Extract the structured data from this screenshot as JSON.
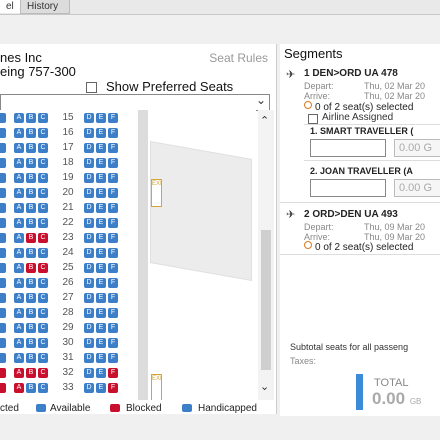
{
  "tabs": [
    "el",
    "History"
  ],
  "seatmap": {
    "airline": "nes Inc",
    "aircraft": "eing 757-300",
    "seat_rules": "Seat Rules",
    "show_preferred": "Show Preferred Seats",
    "rows": [
      {
        "num": "15",
        "blocked": []
      },
      {
        "num": "16",
        "blocked": []
      },
      {
        "num": "17",
        "blocked": []
      },
      {
        "num": "18",
        "blocked": []
      },
      {
        "num": "19",
        "blocked": []
      },
      {
        "num": "20",
        "blocked": []
      },
      {
        "num": "21",
        "blocked": []
      },
      {
        "num": "22",
        "blocked": []
      },
      {
        "num": "23",
        "blocked": [
          1,
          2
        ]
      },
      {
        "num": "24",
        "blocked": []
      },
      {
        "num": "25",
        "blocked": [
          1,
          2
        ]
      },
      {
        "num": "26",
        "blocked": []
      },
      {
        "num": "27",
        "blocked": []
      },
      {
        "num": "28",
        "blocked": []
      },
      {
        "num": "29",
        "blocked": []
      },
      {
        "num": "30",
        "blocked": []
      },
      {
        "num": "31",
        "blocked": []
      },
      {
        "num": "32",
        "blocked": [
          0,
          1,
          2,
          5
        ]
      },
      {
        "num": "33",
        "blocked": [
          0,
          5
        ]
      }
    ],
    "left_letters": [
      "A",
      "B",
      "C"
    ],
    "right_letters": [
      "D",
      "E",
      "F"
    ],
    "exit_label": "EXIT",
    "exit_rows": [
      "20",
      "33"
    ]
  },
  "legend": {
    "selected": "cted",
    "available": "Available",
    "blocked": "Blocked",
    "handicapped": "Handicapped"
  },
  "colors": {
    "available": "#3c7fc8",
    "blocked": "#c8102e",
    "total_bar": "#3a8cd8",
    "exit": "#d4a437"
  },
  "segments": {
    "title": "Segments",
    "list": [
      {
        "head": "1 DEN>ORD UA 478",
        "depart_label": "Depart:",
        "depart": "Thu, 02 Mar 20",
        "arrive_label": "Arrive:",
        "arrive": "Thu, 02 Mar 20",
        "selected_count": "0",
        "selected_text": "of 2 seat(s) selected",
        "airline_assigned": "Airline Assigned",
        "travellers": [
          {
            "name": "1. SMART TRAVELLER (",
            "amount": "0.00 G"
          },
          {
            "name": "2. JOAN TRAVELLER (A",
            "amount": "0.00 G"
          }
        ]
      },
      {
        "head": "2 ORD>DEN UA 493",
        "depart_label": "Depart:",
        "depart": "Thu, 09 Mar 20",
        "arrive_label": "Arrive:",
        "arrive": "Thu, 09 Mar 20",
        "selected_count": "0",
        "selected_text": "of 2 seat(s) selected"
      }
    ],
    "subtotal": "Subtotal seats for all passeng",
    "taxes": "Taxes:",
    "total_label": "TOTAL",
    "total_value": "0.00",
    "total_currency": "GB"
  }
}
